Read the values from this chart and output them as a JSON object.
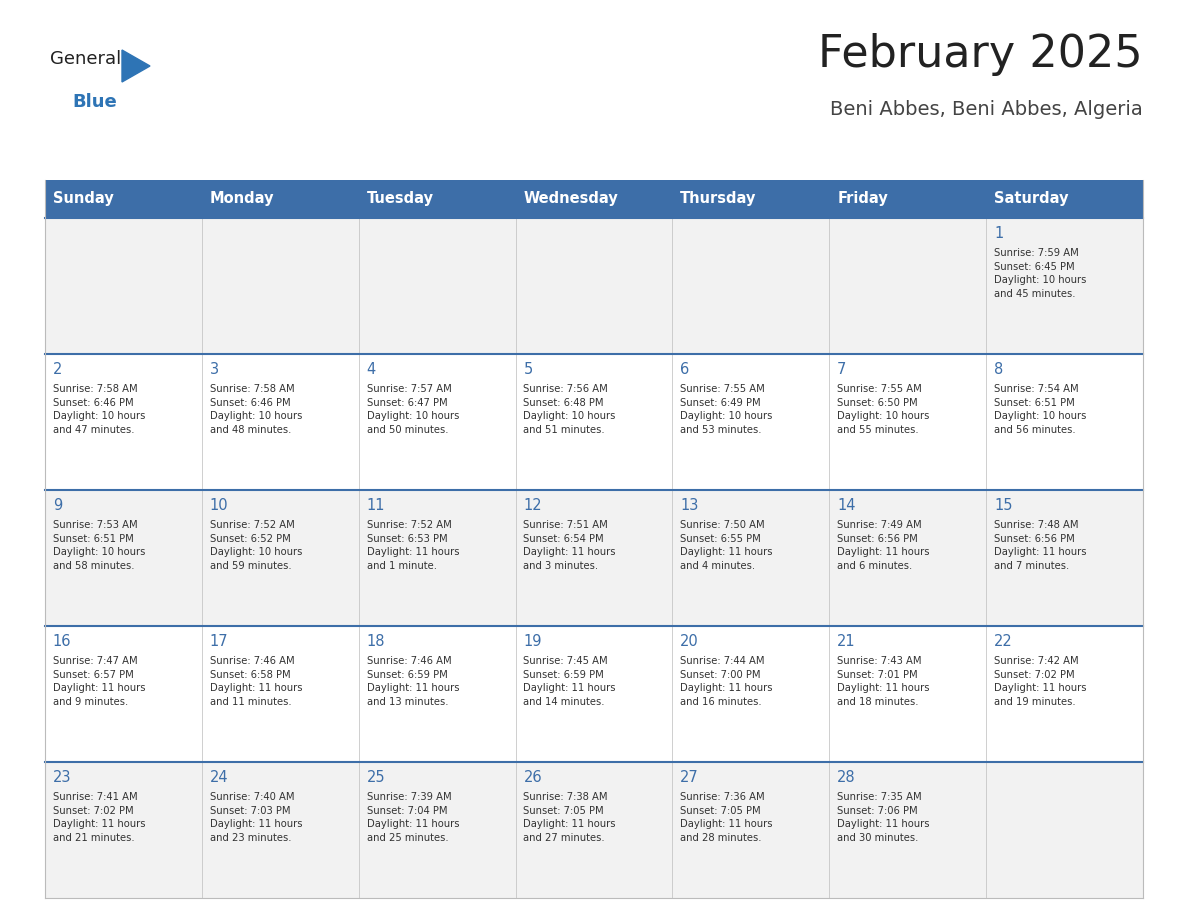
{
  "title": "February 2025",
  "subtitle": "Beni Abbes, Beni Abbes, Algeria",
  "header_bg": "#3D6EA8",
  "header_text": "#FFFFFF",
  "header_days": [
    "Sunday",
    "Monday",
    "Tuesday",
    "Wednesday",
    "Thursday",
    "Friday",
    "Saturday"
  ],
  "row_bg": [
    "#F2F2F2",
    "#FFFFFF",
    "#F2F2F2",
    "#FFFFFF",
    "#F2F2F2"
  ],
  "cell_border_color": "#BBBBBB",
  "row_divider_color": "#3D6EA8",
  "day_num_color": "#3D6EA8",
  "info_text_color": "#333333",
  "title_color": "#222222",
  "subtitle_color": "#444444",
  "logo_general_color": "#222222",
  "logo_blue_color": "#2E74B5",
  "calendar_data": [
    [
      {
        "day": "",
        "info": ""
      },
      {
        "day": "",
        "info": ""
      },
      {
        "day": "",
        "info": ""
      },
      {
        "day": "",
        "info": ""
      },
      {
        "day": "",
        "info": ""
      },
      {
        "day": "",
        "info": ""
      },
      {
        "day": "1",
        "info": "Sunrise: 7:59 AM\nSunset: 6:45 PM\nDaylight: 10 hours\nand 45 minutes."
      }
    ],
    [
      {
        "day": "2",
        "info": "Sunrise: 7:58 AM\nSunset: 6:46 PM\nDaylight: 10 hours\nand 47 minutes."
      },
      {
        "day": "3",
        "info": "Sunrise: 7:58 AM\nSunset: 6:46 PM\nDaylight: 10 hours\nand 48 minutes."
      },
      {
        "day": "4",
        "info": "Sunrise: 7:57 AM\nSunset: 6:47 PM\nDaylight: 10 hours\nand 50 minutes."
      },
      {
        "day": "5",
        "info": "Sunrise: 7:56 AM\nSunset: 6:48 PM\nDaylight: 10 hours\nand 51 minutes."
      },
      {
        "day": "6",
        "info": "Sunrise: 7:55 AM\nSunset: 6:49 PM\nDaylight: 10 hours\nand 53 minutes."
      },
      {
        "day": "7",
        "info": "Sunrise: 7:55 AM\nSunset: 6:50 PM\nDaylight: 10 hours\nand 55 minutes."
      },
      {
        "day": "8",
        "info": "Sunrise: 7:54 AM\nSunset: 6:51 PM\nDaylight: 10 hours\nand 56 minutes."
      }
    ],
    [
      {
        "day": "9",
        "info": "Sunrise: 7:53 AM\nSunset: 6:51 PM\nDaylight: 10 hours\nand 58 minutes."
      },
      {
        "day": "10",
        "info": "Sunrise: 7:52 AM\nSunset: 6:52 PM\nDaylight: 10 hours\nand 59 minutes."
      },
      {
        "day": "11",
        "info": "Sunrise: 7:52 AM\nSunset: 6:53 PM\nDaylight: 11 hours\nand 1 minute."
      },
      {
        "day": "12",
        "info": "Sunrise: 7:51 AM\nSunset: 6:54 PM\nDaylight: 11 hours\nand 3 minutes."
      },
      {
        "day": "13",
        "info": "Sunrise: 7:50 AM\nSunset: 6:55 PM\nDaylight: 11 hours\nand 4 minutes."
      },
      {
        "day": "14",
        "info": "Sunrise: 7:49 AM\nSunset: 6:56 PM\nDaylight: 11 hours\nand 6 minutes."
      },
      {
        "day": "15",
        "info": "Sunrise: 7:48 AM\nSunset: 6:56 PM\nDaylight: 11 hours\nand 7 minutes."
      }
    ],
    [
      {
        "day": "16",
        "info": "Sunrise: 7:47 AM\nSunset: 6:57 PM\nDaylight: 11 hours\nand 9 minutes."
      },
      {
        "day": "17",
        "info": "Sunrise: 7:46 AM\nSunset: 6:58 PM\nDaylight: 11 hours\nand 11 minutes."
      },
      {
        "day": "18",
        "info": "Sunrise: 7:46 AM\nSunset: 6:59 PM\nDaylight: 11 hours\nand 13 minutes."
      },
      {
        "day": "19",
        "info": "Sunrise: 7:45 AM\nSunset: 6:59 PM\nDaylight: 11 hours\nand 14 minutes."
      },
      {
        "day": "20",
        "info": "Sunrise: 7:44 AM\nSunset: 7:00 PM\nDaylight: 11 hours\nand 16 minutes."
      },
      {
        "day": "21",
        "info": "Sunrise: 7:43 AM\nSunset: 7:01 PM\nDaylight: 11 hours\nand 18 minutes."
      },
      {
        "day": "22",
        "info": "Sunrise: 7:42 AM\nSunset: 7:02 PM\nDaylight: 11 hours\nand 19 minutes."
      }
    ],
    [
      {
        "day": "23",
        "info": "Sunrise: 7:41 AM\nSunset: 7:02 PM\nDaylight: 11 hours\nand 21 minutes."
      },
      {
        "day": "24",
        "info": "Sunrise: 7:40 AM\nSunset: 7:03 PM\nDaylight: 11 hours\nand 23 minutes."
      },
      {
        "day": "25",
        "info": "Sunrise: 7:39 AM\nSunset: 7:04 PM\nDaylight: 11 hours\nand 25 minutes."
      },
      {
        "day": "26",
        "info": "Sunrise: 7:38 AM\nSunset: 7:05 PM\nDaylight: 11 hours\nand 27 minutes."
      },
      {
        "day": "27",
        "info": "Sunrise: 7:36 AM\nSunset: 7:05 PM\nDaylight: 11 hours\nand 28 minutes."
      },
      {
        "day": "28",
        "info": "Sunrise: 7:35 AM\nSunset: 7:06 PM\nDaylight: 11 hours\nand 30 minutes."
      },
      {
        "day": "",
        "info": ""
      }
    ]
  ],
  "fig_width": 11.88,
  "fig_height": 9.18,
  "dpi": 100
}
